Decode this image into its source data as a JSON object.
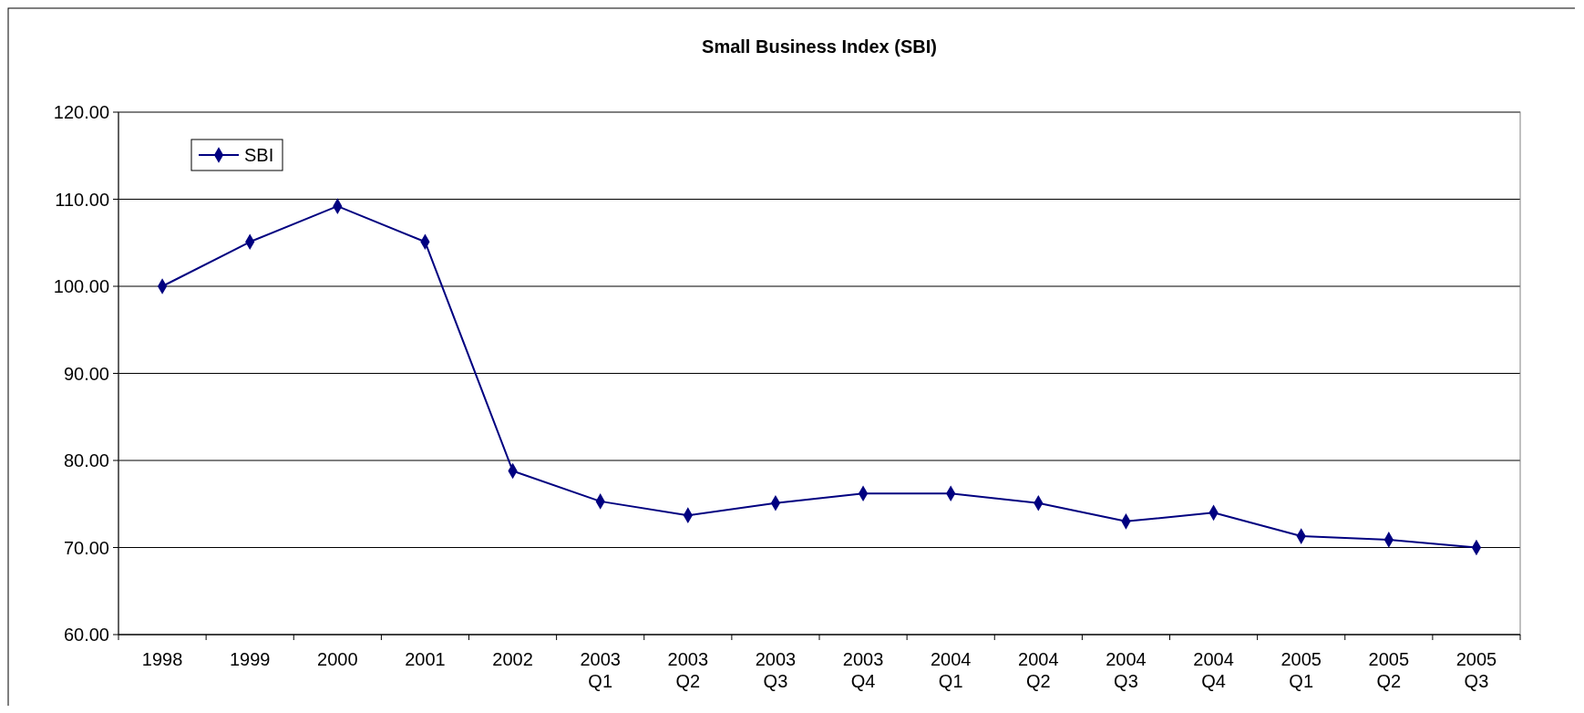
{
  "chart_data": {
    "type": "line",
    "title": "Small Business Index (SBI)",
    "categories": [
      "1998",
      "1999",
      "2000",
      "2001",
      "2002",
      "2003 Q1",
      "2003 Q2",
      "2003 Q3",
      "2003 Q4",
      "2004 Q1",
      "2004 Q2",
      "2004 Q3",
      "2004 Q4",
      "2005 Q1",
      "2005 Q2",
      "2005 Q3"
    ],
    "series": [
      {
        "name": "SBI",
        "color": "#000080",
        "values": [
          100.0,
          105.1,
          109.2,
          105.1,
          78.8,
          75.3,
          73.7,
          75.1,
          76.2,
          76.2,
          75.1,
          73.0,
          74.0,
          71.3,
          70.9,
          70.0
        ]
      }
    ],
    "ylim": [
      60,
      120
    ],
    "yticks": [
      {
        "value": 60,
        "label": "60.00"
      },
      {
        "value": 70,
        "label": "70.00"
      },
      {
        "value": 80,
        "label": "80.00"
      },
      {
        "value": 90,
        "label": "90.00"
      },
      {
        "value": 100,
        "label": "100.00"
      },
      {
        "value": 110,
        "label": "110.00"
      },
      {
        "value": 120,
        "label": "120.00"
      }
    ],
    "grid": "y",
    "legend": "top left",
    "marker": "diamond",
    "line_style": "solid"
  }
}
